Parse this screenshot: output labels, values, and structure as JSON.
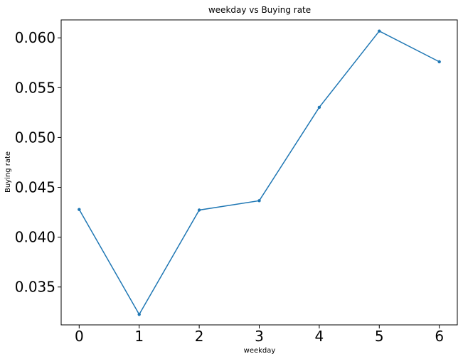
{
  "chart_data": {
    "type": "line",
    "title": "weekday vs Buying rate",
    "xlabel": "weekday",
    "ylabel": "Buying rate",
    "x": [
      0,
      1,
      2,
      3,
      4,
      5,
      6
    ],
    "series": [
      {
        "values": [
          0.04278,
          0.03225,
          0.04272,
          0.04366,
          0.05303,
          0.06068,
          0.0576
        ],
        "color": "#1f77b4",
        "marker": "circle"
      }
    ],
    "xlim": [
      -0.3,
      6.3
    ],
    "ylim": [
      0.0312,
      0.0618
    ],
    "xticks": [
      0,
      1,
      2,
      3,
      4,
      5,
      6
    ],
    "xtick_labels": [
      "0",
      "1",
      "2",
      "3",
      "4",
      "5",
      "6"
    ],
    "yticks": [
      0.035,
      0.04,
      0.045,
      0.05,
      0.055,
      0.06
    ],
    "ytick_labels": [
      "0.035",
      "0.040",
      "0.045",
      "0.050",
      "0.055",
      "0.060"
    ],
    "grid": false,
    "legend": "none"
  }
}
